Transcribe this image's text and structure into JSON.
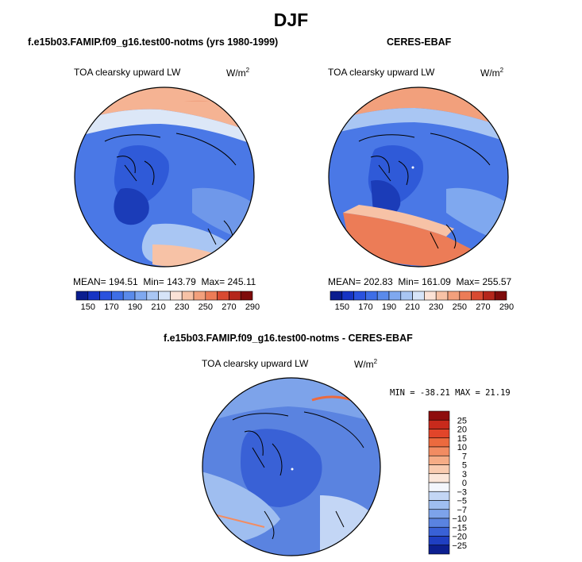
{
  "figure": {
    "title": "DJF"
  },
  "panels": [
    {
      "id": "model",
      "title": "f.e15b03.FAMIP.f09_g16.test00-notms (yrs 1980-1999)",
      "variable": "TOA clearsky upward LW",
      "units": "W/m",
      "units_exp": "2",
      "mean_label": "MEAN=",
      "mean": "194.51",
      "min_label": "Min=",
      "min": "143.79",
      "max_label": "Max=",
      "max": "245.11"
    },
    {
      "id": "obs",
      "title": "CERES-EBAF",
      "variable": "TOA clearsky upward LW",
      "units": "W/m",
      "units_exp": "2",
      "mean_label": "MEAN=",
      "mean": "202.83",
      "min_label": "Min=",
      "min": "161.09",
      "max_label": "Max=",
      "max": "255.57"
    },
    {
      "id": "diff",
      "title": "f.e15b03.FAMIP.f09_g16.test00-notms - CERES-EBAF",
      "variable": "TOA clearsky upward LW",
      "units": "W/m",
      "units_exp": "2",
      "minmax_text": "MIN = -38.21 MAX =  21.19"
    }
  ],
  "colorbar_field": {
    "tick_labels": [
      "150",
      "170",
      "190",
      "210",
      "230",
      "250",
      "270",
      "290"
    ],
    "colors": [
      "#0a1d8f",
      "#1634c4",
      "#2a52de",
      "#3e6ee6",
      "#5a8aea",
      "#7fa8ef",
      "#a9c6f3",
      "#d6e4f8",
      "#fbe2d6",
      "#f7c2a6",
      "#f2a07c",
      "#ec7c57",
      "#d84a31",
      "#b4261b",
      "#7e0b0b"
    ]
  },
  "colorbar_diff": {
    "levels": [
      "25",
      "20",
      "15",
      "10",
      "7",
      "5",
      "3",
      "0",
      "-3",
      "-5",
      "-7",
      "-10",
      "-15",
      "-20",
      "-25"
    ],
    "colors": [
      "#8e0d0d",
      "#c82a1c",
      "#e2452a",
      "#ec6a3e",
      "#f28c62",
      "#f6ac86",
      "#f9cbb0",
      "#fbe6da",
      "#f3f6fd",
      "#c3d6f5",
      "#9fbef0",
      "#7da3ea",
      "#5a83e0",
      "#3961d6",
      "#1f3fc2",
      "#0c1f90"
    ]
  }
}
